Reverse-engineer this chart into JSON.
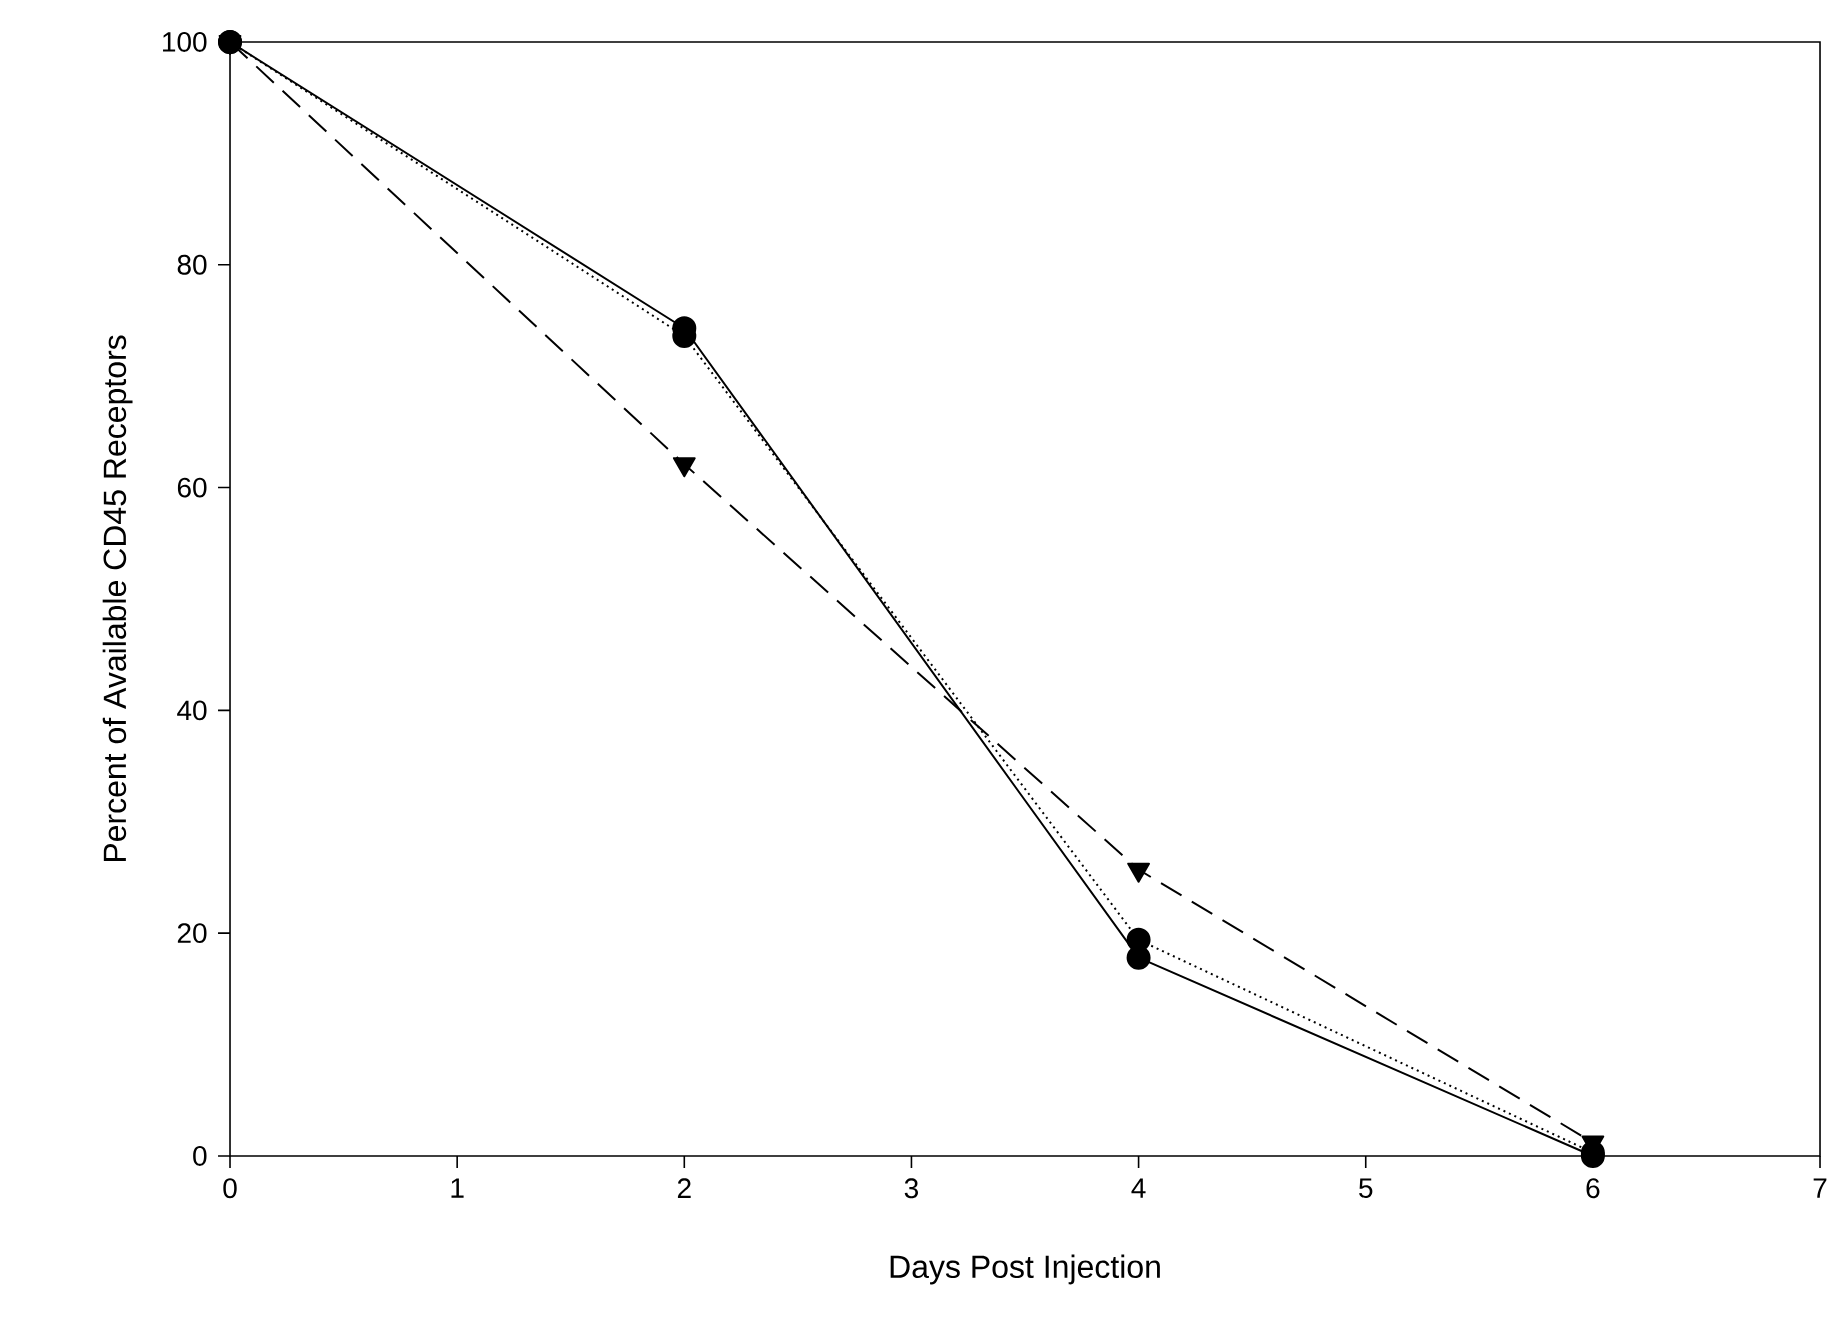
{
  "chart_data": {
    "type": "line",
    "xlabel": "Days Post Injection",
    "ylabel": "Percent of Available CD45 Receptors",
    "xlim": [
      0,
      7
    ],
    "ylim": [
      0,
      100
    ],
    "xticks": [
      0,
      1,
      2,
      3,
      4,
      5,
      6,
      7
    ],
    "yticks": [
      0,
      20,
      40,
      60,
      80,
      100
    ],
    "series": [
      {
        "color": "#000000",
        "x": [
          0,
          2,
          4,
          6
        ],
        "values": [
          100,
          74.3,
          17.8,
          0
        ],
        "marker": "circle",
        "line_style": "solid"
      },
      {
        "color": "#000000",
        "x": [
          0,
          2,
          4,
          6
        ],
        "values": [
          100,
          73.6,
          19.4,
          0.3
        ],
        "marker": "circle",
        "line_style": "dotted"
      },
      {
        "color": "#000000",
        "x": [
          0,
          2,
          4,
          6
        ],
        "values": [
          100,
          62.1,
          25.7,
          1.2
        ],
        "marker": "triangle",
        "line_style": "dashed"
      }
    ]
  }
}
